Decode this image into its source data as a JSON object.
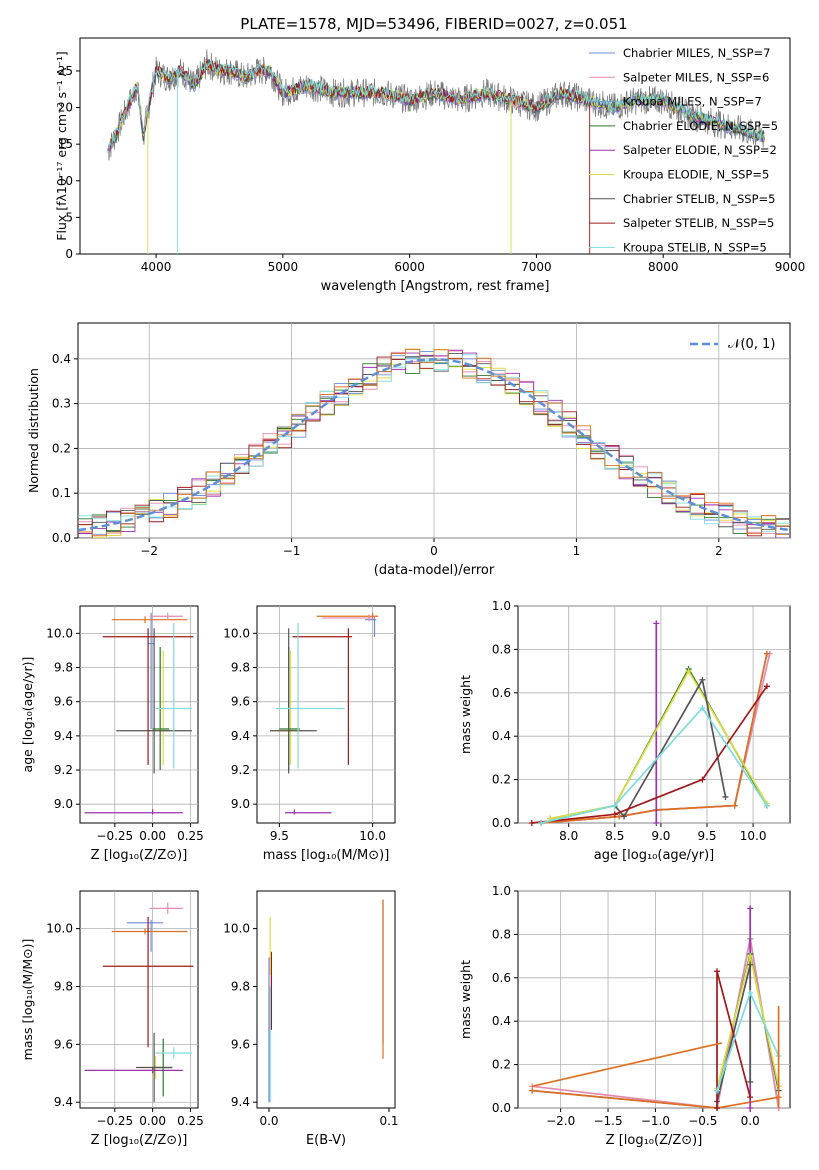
{
  "title": "PLATE=1578, MJD=53496, FIBERID=0027, z=0.051",
  "colors": [
    "#6a8ddc",
    "#e68bb0",
    "#76a0c8",
    "#2a7a2a",
    "#9b30b0",
    "#dede40",
    "#555555",
    "#a01818",
    "#7fdcdc"
  ],
  "chart_data": [
    {
      "type": "line",
      "xlabel": "wavelength [Angstrom, rest frame]",
      "ylabel": "Flux [fλ10⁻¹⁷ erg cm⁻² s⁻¹ A⁻¹]",
      "xlim": [
        3400,
        9000
      ],
      "ylim": [
        0,
        29.5
      ],
      "xticks": [
        "4000",
        "5000",
        "6000",
        "7000",
        "8000",
        "9000"
      ],
      "yticks": [
        "0",
        "5",
        "10",
        "15",
        "20",
        "25"
      ],
      "legend_position": "top-right",
      "legend": [
        "Chabrier MILES, N_SSP=7",
        "Salpeter MILES, N_SSP=6",
        "Kroupa MILES, N_SSP=7",
        "Chabrier ELODIE, N_SSP=5",
        "Salpeter ELODIE, N_SSP=2",
        "Kroupa ELODIE, N_SSP=5",
        "Chabrier STELIB, N_SSP=5",
        "Salpeter STELIB, N_SSP=5",
        "Kroupa STELIB, N_SSP=5"
      ],
      "spectrum": {
        "wavelength": [
          3620,
          3700,
          3800,
          3850,
          3900,
          3950,
          4000,
          4100,
          4200,
          4300,
          4400,
          4500,
          4600,
          4700,
          4800,
          4900,
          5000,
          5200,
          5400,
          5600,
          5800,
          6000,
          6200,
          6400,
          6600,
          6800,
          7000,
          7200,
          7400,
          7600,
          7800,
          8000,
          8200,
          8400,
          8600,
          8800
        ],
        "flux": [
          14,
          17,
          21,
          23,
          16,
          21,
          25,
          24,
          25,
          23,
          26,
          25,
          25,
          24,
          25,
          25,
          22,
          23,
          22,
          22,
          22,
          21,
          22,
          21,
          22,
          21,
          20,
          22,
          21,
          20,
          21,
          21,
          19,
          18,
          17,
          16
        ]
      }
    },
    {
      "type": "histogram",
      "xlabel": "(data-model)/error",
      "ylabel": "Normed distribution",
      "xlim": [
        -2.5,
        2.5
      ],
      "ylim": [
        0,
        0.48
      ],
      "xticks": [
        "−2",
        "−1",
        "0",
        "1",
        "2"
      ],
      "yticks": [
        "0.0",
        "0.1",
        "0.2",
        "0.3",
        "0.4"
      ],
      "legend": [
        "𝒩(0, 1)"
      ],
      "legend_position": "top-right",
      "reference_curve": "normal(0,1)",
      "bin_width": 0.1
    },
    {
      "type": "scatter",
      "xlabel": "Z [log₁₀(Z/Z⊙)]",
      "ylabel": "age  [log₁₀(age/yr)]",
      "xlim": [
        -0.48,
        0.3
      ],
      "ylim": [
        8.89,
        10.16
      ],
      "xticks": [
        "−0.25",
        "0.00",
        "0.25"
      ],
      "yticks": [
        "9.0",
        "9.2",
        "9.4",
        "9.6",
        "9.8",
        "10.0"
      ],
      "points": [
        {
          "x": -0.01,
          "y": 9.94,
          "xerr": [
            0.02,
            0.02
          ],
          "yerr": [
            0.5,
            0.18
          ]
        },
        {
          "x": -0.05,
          "y": 10.08,
          "xerr": [
            0.22,
            0.28
          ],
          "yerr": [
            0.02,
            0.02
          ]
        },
        {
          "x": 0.1,
          "y": 10.1,
          "xerr": [
            0.12,
            0.1
          ],
          "yerr": [
            0.02,
            0.02
          ]
        },
        {
          "x": 0.07,
          "y": 9.43,
          "xerr": [
            0.1,
            0.05
          ],
          "yerr": [
            0.2,
            0.47
          ]
        },
        {
          "x": 0.0,
          "y": 8.95,
          "xerr": [
            0.45,
            0.2
          ],
          "yerr": [
            0.01,
            0.02
          ]
        },
        {
          "x": 0.05,
          "y": 9.44,
          "xerr": [
            0.05,
            0.06
          ],
          "yerr": [
            0.24,
            0.48
          ]
        },
        {
          "x": 0.01,
          "y": 9.43,
          "xerr": [
            0.25,
            0.25
          ],
          "yerr": [
            0.25,
            0.6
          ]
        },
        {
          "x": -0.03,
          "y": 9.98,
          "xerr": [
            0.3,
            0.3
          ],
          "yerr": [
            0.75,
            0.05
          ]
        },
        {
          "x": 0.14,
          "y": 9.56,
          "xerr": [
            0.12,
            0.12
          ],
          "yerr": [
            0.35,
            0.5
          ]
        }
      ]
    },
    {
      "type": "scatter",
      "xlabel": "mass [log₁₀(M/M⊙)]",
      "ylabel": "",
      "xlim": [
        9.38,
        10.12
      ],
      "ylim": [
        8.89,
        10.16
      ],
      "xticks": [
        "9.5",
        "10.0"
      ],
      "yticks": [
        "9.0",
        "9.2",
        "9.4",
        "9.6",
        "9.8",
        "10.0"
      ],
      "points": [
        {
          "x": 10.01,
          "y": 10.08,
          "xerr": [
            0.05,
            0.01
          ],
          "yerr": [
            0.1,
            0.02
          ]
        },
        {
          "x": 10.0,
          "y": 10.1,
          "xerr": [
            0.3,
            0.03
          ],
          "yerr": [
            0.02,
            0.02
          ]
        },
        {
          "x": 9.98,
          "y": 10.09,
          "xerr": [
            0.25,
            0.02
          ],
          "yerr": [
            0.02,
            0.02
          ]
        },
        {
          "x": 9.56,
          "y": 9.43,
          "xerr": [
            0.1,
            0.05
          ],
          "yerr": [
            0.2,
            0.47
          ]
        },
        {
          "x": 9.58,
          "y": 8.95,
          "xerr": [
            0.05,
            0.2
          ],
          "yerr": [
            0.01,
            0.02
          ]
        },
        {
          "x": 9.55,
          "y": 9.44,
          "xerr": [
            0.05,
            0.06
          ],
          "yerr": [
            0.24,
            0.48
          ]
        },
        {
          "x": 9.55,
          "y": 9.43,
          "xerr": [
            0.1,
            0.15
          ],
          "yerr": [
            0.25,
            0.6
          ]
        },
        {
          "x": 9.87,
          "y": 9.98,
          "xerr": [
            0.3,
            0.02
          ],
          "yerr": [
            0.75,
            0.05
          ]
        },
        {
          "x": 9.6,
          "y": 9.56,
          "xerr": [
            0.12,
            0.25
          ],
          "yerr": [
            0.35,
            0.5
          ]
        }
      ]
    },
    {
      "type": "line",
      "xlabel": "age  [log₁₀(age/yr)]",
      "ylabel": "mass weight",
      "xlim": [
        7.45,
        10.4
      ],
      "ylim": [
        0,
        1.0
      ],
      "xticks": [
        "8.0",
        "8.5",
        "9.0",
        "9.5",
        "10.0"
      ],
      "yticks": [
        "0.0",
        "0.2",
        "0.4",
        "0.6",
        "0.8",
        "1.0"
      ],
      "series": [
        {
          "x": [
            7.7,
            8.55,
            8.95,
            9.8,
            10.15
          ],
          "y": [
            0.0,
            0.03,
            0.06,
            0.08,
            0.78
          ]
        },
        {
          "x": [
            7.7,
            8.55,
            8.95,
            9.8,
            10.18
          ],
          "y": [
            0.0,
            0.03,
            0.06,
            0.08,
            0.78
          ]
        },
        {
          "x": [
            7.7,
            8.55,
            8.95,
            9.8,
            10.15
          ],
          "y": [
            0.0,
            0.03,
            0.06,
            0.08,
            0.78
          ]
        },
        {
          "x": [
            7.8,
            8.5,
            9.3,
            10.15
          ],
          "y": [
            0.02,
            0.08,
            0.71,
            0.08
          ]
        },
        {
          "x": [
            8.95,
            8.95
          ],
          "y": [
            0.0,
            0.92
          ]
        },
        {
          "x": [
            7.8,
            8.5,
            9.3,
            10.15
          ],
          "y": [
            0.02,
            0.08,
            0.7,
            0.09
          ]
        },
        {
          "x": [
            8.5,
            8.6,
            9.45,
            9.7
          ],
          "y": [
            0.08,
            0.03,
            0.66,
            0.12
          ]
        },
        {
          "x": [
            7.6,
            8.5,
            9.45,
            10.15
          ],
          "y": [
            0.0,
            0.04,
            0.2,
            0.63
          ]
        },
        {
          "x": [
            7.7,
            8.5,
            9.45,
            10.15
          ],
          "y": [
            0.0,
            0.08,
            0.53,
            0.08
          ]
        }
      ]
    },
    {
      "type": "scatter",
      "xlabel": "Z [log₁₀(Z/Z⊙)]",
      "ylabel": "mass [log₁₀(M/M⊙)]",
      "xlim": [
        -0.48,
        0.3
      ],
      "ylim": [
        9.38,
        10.13
      ],
      "xticks": [
        "−0.25",
        "0.00",
        "0.25"
      ],
      "yticks": [
        "9.4",
        "9.6",
        "9.8",
        "10.0"
      ],
      "points": [
        {
          "x": -0.01,
          "y": 10.02,
          "xerr": [
            0.16,
            0.08
          ],
          "yerr": [
            0.1,
            0.01
          ]
        },
        {
          "x": -0.05,
          "y": 9.99,
          "xerr": [
            0.22,
            0.28
          ],
          "yerr": [
            0.01,
            0.01
          ]
        },
        {
          "x": 0.1,
          "y": 10.07,
          "xerr": [
            0.12,
            0.1
          ],
          "yerr": [
            0.02,
            0.02
          ]
        },
        {
          "x": 0.02,
          "y": 9.52,
          "xerr": [
            0.1,
            0.08
          ],
          "yerr": [
            0.04,
            0.04
          ]
        },
        {
          "x": 0.0,
          "y": 9.51,
          "xerr": [
            0.45,
            0.2
          ],
          "yerr": [
            0.01,
            0.01
          ]
        },
        {
          "x": 0.07,
          "y": 9.52,
          "xerr": [
            0.05,
            0.06
          ],
          "yerr": [
            0.1,
            0.1
          ]
        },
        {
          "x": 0.01,
          "y": 9.52,
          "xerr": [
            0.12,
            0.12
          ],
          "yerr": [
            0.12,
            0.12
          ]
        },
        {
          "x": -0.03,
          "y": 9.87,
          "xerr": [
            0.3,
            0.3
          ],
          "yerr": [
            0.28,
            0.17
          ]
        },
        {
          "x": 0.14,
          "y": 9.57,
          "xerr": [
            0.12,
            0.12
          ],
          "yerr": [
            0.02,
            0.02
          ]
        }
      ]
    },
    {
      "type": "scatter",
      "xlabel": "E(B-V)",
      "ylabel": "",
      "xlim": [
        -0.01,
        0.105
      ],
      "ylim": [
        9.38,
        10.13
      ],
      "xticks": [
        "0.0",
        "0.1"
      ],
      "yticks": [
        "9.4",
        "9.6",
        "9.8",
        "10.0"
      ],
      "points": [
        {
          "x": 0.095,
          "y": 9.85,
          "yerr": [
            0.25,
            0.25
          ]
        },
        {
          "x": 0.095,
          "y": 9.75,
          "yerr": [
            0.2,
            0.35
          ]
        },
        {
          "x": 0.002,
          "y": 9.8,
          "yerr": [
            0.15,
            0.12
          ]
        },
        {
          "x": 0.001,
          "y": 9.9,
          "yerr": [
            0.06,
            0.14
          ]
        },
        {
          "x": 0.001,
          "y": 9.6,
          "yerr": [
            0.2,
            0.2
          ]
        },
        {
          "x": 0.0,
          "y": 9.7,
          "yerr": [
            0.3,
            0.2
          ]
        }
      ]
    },
    {
      "type": "line",
      "xlabel": "Z [log₁₀(Z/Z⊙)]",
      "ylabel": "mass weight",
      "xlim": [
        -2.45,
        0.42
      ],
      "ylim": [
        0,
        1.0
      ],
      "xticks": [
        "−2.0",
        "−1.5",
        "−1.0",
        "−0.5",
        "0.0"
      ],
      "yticks": [
        "0.0",
        "0.2",
        "0.4",
        "0.6",
        "0.8",
        "1.0"
      ],
      "series": [
        {
          "x": [
            -2.3,
            -0.35,
            0.0,
            0.3
          ],
          "y": [
            0.08,
            0.0,
            0.78,
            0.0
          ]
        },
        {
          "x": [
            -2.3,
            -0.35,
            0.0,
            0.3
          ],
          "y": [
            0.1,
            0.0,
            0.78,
            0.0
          ]
        },
        {
          "x": [
            -2.3,
            -0.35,
            0.3
          ],
          "y": [
            0.08,
            0.0,
            0.05
          ]
        },
        {
          "x": [
            -0.35,
            0.0,
            0.3
          ],
          "y": [
            0.08,
            0.71,
            0.08
          ]
        },
        {
          "x": [
            0.0,
            0.0
          ],
          "y": [
            0.0,
            0.92
          ]
        },
        {
          "x": [
            -0.35,
            0.0,
            0.3
          ],
          "y": [
            0.09,
            0.7,
            0.1
          ]
        },
        {
          "x": [
            -0.35,
            0.0,
            0.0
          ],
          "y": [
            0.03,
            0.66,
            0.12
          ]
        },
        {
          "x": [
            -0.35,
            -0.35,
            0.0
          ],
          "y": [
            0.0,
            0.63,
            0.05
          ]
        },
        {
          "x": [
            -0.35,
            0.0,
            0.3
          ],
          "y": [
            0.08,
            0.53,
            0.24
          ]
        }
      ],
      "extra_segments": [
        {
          "x": [
            -2.3,
            -0.3
          ],
          "y": [
            0.1,
            0.3
          ]
        },
        {
          "x": [
            0.3,
            0.3
          ],
          "y": [
            0.0,
            0.47
          ]
        }
      ]
    }
  ]
}
